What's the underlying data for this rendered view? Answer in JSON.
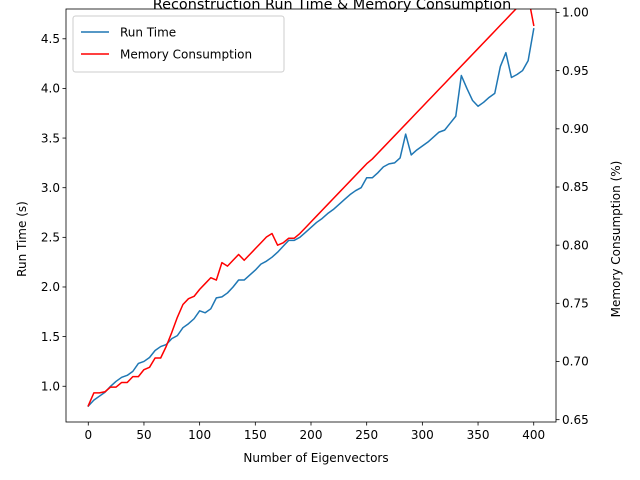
{
  "chart_data": {
    "type": "line",
    "title": "Reconstruction Run Time & Memory Consumption",
    "xlabel": "Number of Eigenvectors",
    "ylabel_left": "Run Time (s)",
    "ylabel_right": "Memory Consumption (%)",
    "xlim": [
      -20,
      420
    ],
    "ylim_left": [
      0.64,
      4.8
    ],
    "ylim_right": [
      0.648,
      1.003
    ],
    "x_ticks": [
      0,
      50,
      100,
      150,
      200,
      250,
      300,
      350,
      400
    ],
    "y_left_ticks": [
      1.0,
      1.5,
      2.0,
      2.5,
      3.0,
      3.5,
      4.0,
      4.5
    ],
    "y_right_ticks": [
      0.65,
      0.7,
      0.75,
      0.8,
      0.85,
      0.9,
      0.95,
      1.0
    ],
    "x_tick_labels": [
      "0",
      "50",
      "100",
      "150",
      "200",
      "250",
      "300",
      "350",
      "400"
    ],
    "y_left_tick_labels": [
      "1.0",
      "1.5",
      "2.0",
      "2.5",
      "3.0",
      "3.5",
      "4.0",
      "4.5"
    ],
    "y_right_tick_labels": [
      "0.65",
      "0.70",
      "0.75",
      "0.80",
      "0.85",
      "0.90",
      "0.95",
      "1.00"
    ],
    "grid": false,
    "legend_position": "top-left",
    "series": [
      {
        "name": "Run Time",
        "axis": "left",
        "color": "#1f77b4",
        "x": [
          0,
          5,
          10,
          15,
          20,
          25,
          30,
          35,
          40,
          45,
          50,
          55,
          60,
          65,
          70,
          75,
          80,
          85,
          90,
          95,
          100,
          105,
          110,
          115,
          120,
          125,
          130,
          135,
          140,
          145,
          150,
          155,
          160,
          165,
          170,
          175,
          180,
          185,
          190,
          195,
          200,
          205,
          210,
          215,
          220,
          225,
          230,
          235,
          240,
          245,
          250,
          255,
          260,
          265,
          270,
          275,
          280,
          285,
          290,
          295,
          300,
          305,
          310,
          315,
          320,
          325,
          330,
          335,
          340,
          345,
          350,
          355,
          360,
          365,
          370,
          375,
          380,
          385,
          390,
          395,
          400
        ],
        "values": [
          0.8,
          0.86,
          0.9,
          0.94,
          1.0,
          1.05,
          1.09,
          1.11,
          1.15,
          1.23,
          1.25,
          1.29,
          1.36,
          1.4,
          1.42,
          1.48,
          1.51,
          1.59,
          1.63,
          1.68,
          1.76,
          1.74,
          1.78,
          1.89,
          1.9,
          1.94,
          2.0,
          2.07,
          2.07,
          2.12,
          2.17,
          2.23,
          2.26,
          2.3,
          2.35,
          2.41,
          2.47,
          2.47,
          2.5,
          2.55,
          2.6,
          2.65,
          2.69,
          2.74,
          2.78,
          2.83,
          2.88,
          2.93,
          2.97,
          3.0,
          3.1,
          3.1,
          3.15,
          3.21,
          3.24,
          3.25,
          3.3,
          3.54,
          3.33,
          3.38,
          3.42,
          3.46,
          3.51,
          3.56,
          3.58,
          3.65,
          3.72,
          4.13,
          4.0,
          3.88,
          3.82,
          3.86,
          3.91,
          3.95,
          4.22,
          4.36,
          4.11,
          4.14,
          4.18,
          4.28,
          4.6
        ]
      },
      {
        "name": "Memory Consumption",
        "axis": "right",
        "color": "#ff0000",
        "x": [
          0,
          5,
          10,
          15,
          20,
          25,
          30,
          35,
          40,
          45,
          50,
          55,
          60,
          65,
          70,
          75,
          80,
          85,
          90,
          95,
          100,
          105,
          110,
          115,
          120,
          125,
          130,
          135,
          140,
          145,
          150,
          155,
          160,
          165,
          170,
          175,
          180,
          185,
          190,
          195,
          200,
          205,
          210,
          215,
          220,
          225,
          230,
          235,
          240,
          245,
          250,
          255,
          260,
          265,
          270,
          275,
          280,
          285,
          290,
          295,
          300,
          305,
          310,
          315,
          320,
          325,
          330,
          335,
          340,
          345,
          350,
          355,
          360,
          365,
          370,
          375,
          380,
          385,
          390,
          395,
          400
        ],
        "values": [
          0.662,
          0.673,
          0.673,
          0.674,
          0.678,
          0.678,
          0.682,
          0.682,
          0.687,
          0.687,
          0.693,
          0.695,
          0.703,
          0.703,
          0.713,
          0.725,
          0.738,
          0.749,
          0.754,
          0.756,
          0.762,
          0.767,
          0.772,
          0.77,
          0.785,
          0.782,
          0.787,
          0.792,
          0.787,
          0.792,
          0.797,
          0.802,
          0.807,
          0.81,
          0.8,
          0.802,
          0.806,
          0.806,
          0.81,
          0.815,
          0.82,
          0.825,
          0.83,
          0.835,
          0.84,
          0.845,
          0.85,
          0.855,
          0.86,
          0.865,
          0.87,
          0.874,
          0.879,
          0.884,
          0.889,
          0.894,
          0.899,
          0.904,
          0.909,
          0.914,
          0.919,
          0.924,
          0.929,
          0.934,
          0.939,
          0.944,
          0.949,
          0.954,
          0.959,
          0.964,
          0.969,
          0.974,
          0.979,
          0.984,
          0.989,
          0.994,
          0.999,
          1.004,
          1.009,
          1.014,
          0.989
        ]
      }
    ]
  }
}
